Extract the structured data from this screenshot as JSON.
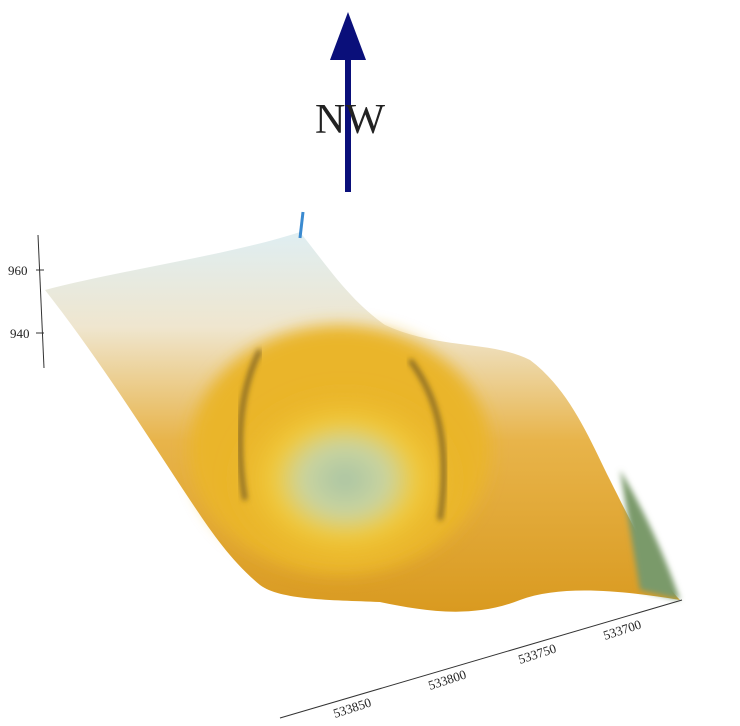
{
  "compass": {
    "label": "NW"
  },
  "z_axis": {
    "ticks": [
      960,
      940
    ]
  },
  "x_axis": {
    "ticks": [
      533850,
      533800,
      533750,
      533700
    ]
  }
}
